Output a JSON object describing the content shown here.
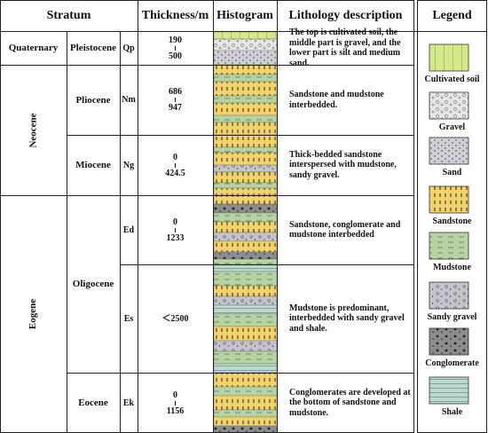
{
  "header": {
    "stratum": "Stratum",
    "thickness": "Thickness/m",
    "histogram": "Histogram",
    "lithology": "Lithology description",
    "legend": "Legend"
  },
  "eras": [
    "Quaternary",
    "Neocene",
    "Eogene"
  ],
  "epochs": [
    "Pleistocene",
    "Pliocene",
    "Miocene",
    "Oligocene",
    "Eocene"
  ],
  "units": [
    {
      "code": "Qp",
      "thickness": [
        "190",
        "500"
      ],
      "description": "The top is cultivated soil, the middle part is gravel, and the lower part is silt and medium sand."
    },
    {
      "code": "Nm",
      "thickness": [
        "686",
        "947"
      ],
      "description": "Sandstone and mudstone interbedded."
    },
    {
      "code": "Ng",
      "thickness": [
        "0",
        "424.5"
      ],
      "description": "Thick-bedded sandstone interspersed with mudstone, sandy gravel."
    },
    {
      "code": "Ed",
      "thickness": [
        "0",
        "1233"
      ],
      "description": "Sandstone, conglomerate and mudstone interbedded"
    },
    {
      "code": "Es",
      "thickness": [
        "＜2500"
      ],
      "description": "Mudstone is predominant, interbedded with sandy gravel and shale."
    },
    {
      "code": "Ek",
      "thickness": [
        "0",
        "1156"
      ],
      "description": "Conglomerates are developed at the bottom of sandstone and mudstone."
    }
  ],
  "legend": [
    "Cultivated soil",
    "Gravel",
    "Sand",
    "Sandstone",
    "Mudstone",
    "Sandy gravel",
    "Conglomerate",
    "Shale"
  ]
}
